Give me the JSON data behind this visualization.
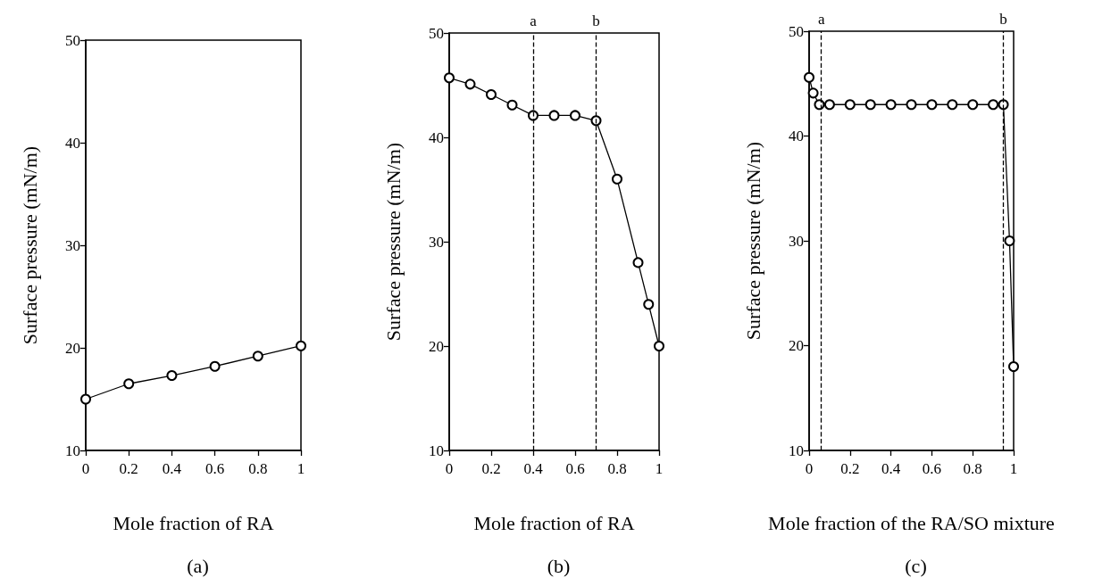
{
  "chart_data": [
    {
      "type": "line",
      "title": "(a)",
      "xlabel": "Mole fraction of RA",
      "ylabel": "Surface pressure (mN/m)",
      "x": [
        0,
        0.2,
        0.4,
        0.6,
        0.8,
        1
      ],
      "series": [
        {
          "color": "#000000",
          "values": [
            15,
            16.5,
            17.3,
            18.2,
            19.2,
            20.2
          ]
        }
      ],
      "xlim": [
        0,
        1
      ],
      "ylim": [
        10,
        50
      ],
      "xticks": [
        0,
        0.2,
        0.4,
        0.6,
        0.8,
        1
      ],
      "yticks": [
        10,
        20,
        30,
        40,
        50
      ],
      "marker": "circle",
      "line_style": "solid",
      "grid": false
    },
    {
      "type": "line",
      "title": "(b)",
      "xlabel": "Mole fraction of RA",
      "ylabel": "Surface pressure (mN/m)",
      "x": [
        0,
        0.1,
        0.2,
        0.3,
        0.4,
        0.5,
        0.6,
        0.7,
        0.8,
        0.9,
        0.95,
        1
      ],
      "series": [
        {
          "color": "#000000",
          "values": [
            45.7,
            45.1,
            44.1,
            43.1,
            42.1,
            42.1,
            42.1,
            41.6,
            36,
            28,
            24,
            20
          ]
        }
      ],
      "xlim": [
        0,
        1
      ],
      "ylim": [
        10,
        50
      ],
      "xticks": [
        0,
        0.2,
        0.4,
        0.6,
        0.8,
        1
      ],
      "yticks": [
        10,
        20,
        30,
        40,
        50
      ],
      "marker": "circle",
      "line_style": "solid",
      "grid": false,
      "ref_lines": [
        {
          "axis": "x",
          "value": 0.4,
          "label": "a",
          "line_style": "dashed"
        },
        {
          "axis": "x",
          "value": 0.7,
          "label": "b",
          "line_style": "dashed"
        }
      ]
    },
    {
      "type": "line",
      "title": "(c)",
      "xlabel": "Mole fraction of the RA/SO mixture",
      "ylabel": "Surface pressure (mN/m)",
      "x": [
        0,
        0.02,
        0.05,
        0.1,
        0.2,
        0.3,
        0.4,
        0.5,
        0.6,
        0.7,
        0.8,
        0.9,
        0.95,
        0.98,
        1
      ],
      "series": [
        {
          "color": "#000000",
          "values": [
            45.6,
            44.1,
            43,
            43,
            43,
            43,
            43,
            43,
            43,
            43,
            43,
            43,
            43,
            30,
            18
          ]
        }
      ],
      "xlim": [
        0,
        1
      ],
      "ylim": [
        10,
        50
      ],
      "xticks": [
        0,
        0.2,
        0.4,
        0.6,
        0.8,
        1
      ],
      "yticks": [
        10,
        20,
        30,
        40,
        50
      ],
      "marker": "circle",
      "line_style": "solid",
      "grid": false,
      "ref_lines": [
        {
          "axis": "x",
          "value": 0.06,
          "label": "a",
          "line_style": "dashed"
        },
        {
          "axis": "x",
          "value": 0.95,
          "label": "b",
          "line_style": "dashed"
        }
      ]
    }
  ]
}
